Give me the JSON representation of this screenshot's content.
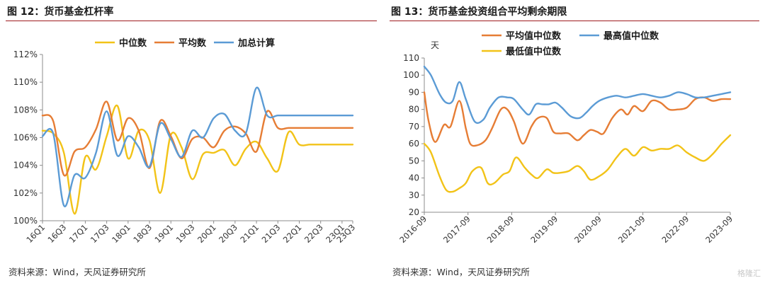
{
  "colors": {
    "median": "#f2c318",
    "average": "#e67d35",
    "aggregate": "#5b9bd5",
    "title_rule": "#9e1b20"
  },
  "watermark": "格隆汇",
  "charts": [
    {
      "title": "图 12：货币基金杠杆率",
      "source": "资料来源：Wind，天风证券研究所",
      "chart_data": {
        "type": "line",
        "title": "图 12：货币基金杠杆率",
        "xlabel": "",
        "ylabel": "",
        "ylim": [
          100,
          112
        ],
        "yticks": [
          100,
          102,
          104,
          106,
          108,
          110,
          112
        ],
        "ytick_labels": [
          "100%",
          "102%",
          "104%",
          "106%",
          "108%",
          "110%",
          "112%"
        ],
        "grid": false,
        "legend_position": "top",
        "x": [
          0,
          1,
          2,
          3,
          4,
          5,
          6,
          7,
          8,
          9,
          10,
          11,
          12,
          13,
          14,
          15,
          16,
          17,
          18,
          19,
          20,
          21,
          22,
          23,
          24,
          25,
          26,
          27,
          28,
          29
        ],
        "xrange": [
          0,
          29
        ],
        "xtick_positions": [
          0,
          2,
          4,
          6,
          8,
          10,
          12,
          14,
          16,
          18,
          20,
          22,
          24,
          26,
          28,
          29
        ],
        "xtick_labels": [
          "16Q1",
          "16Q3",
          "17Q1",
          "17Q3",
          "18Q1",
          "18Q3",
          "19Q1",
          "19Q3",
          "20Q1",
          "20Q3",
          "21Q1",
          "21Q3",
          "22Q1",
          "22Q3",
          "23Q1",
          "23Q3"
        ],
        "series": [
          {
            "name": "中位数",
            "color_key": "median",
            "values": [
              106.5,
              106.3,
              104.9,
              100.5,
              104.6,
              103.7,
              106.1,
              108.3,
              104.5,
              106.5,
              105.8,
              102.0,
              106.2,
              105.3,
              103.0,
              104.8,
              104.9,
              105.1,
              104.0,
              105.2,
              105.7,
              104.5,
              103.6,
              106.4,
              105.5,
              105.5,
              105.5,
              105.5,
              105.5,
              105.5
            ]
          },
          {
            "name": "平均数",
            "color_key": "average",
            "values": [
              107.6,
              107.2,
              103.3,
              105.0,
              105.3,
              106.6,
              108.6,
              105.8,
              107.4,
              106.5,
              103.8,
              107.2,
              106.1,
              104.5,
              105.9,
              106.0,
              105.3,
              106.5,
              106.8,
              106.3,
              105.0,
              107.9,
              106.7,
              106.7,
              106.7,
              106.7,
              106.7,
              106.7,
              106.7,
              106.7
            ]
          },
          {
            "name": "加总计算",
            "color_key": "aggregate",
            "values": [
              106.1,
              106.3,
              101.1,
              103.3,
              103.1,
              104.9,
              107.9,
              104.7,
              106.1,
              105.3,
              103.9,
              107.0,
              105.9,
              104.6,
              106.5,
              106.0,
              107.4,
              107.7,
              106.5,
              106.3,
              109.6,
              107.6,
              107.6,
              107.6,
              107.6,
              107.6,
              107.6,
              107.6,
              107.6,
              107.6
            ]
          }
        ]
      }
    },
    {
      "title": "图 13：货币基金投资组合平均剩余期限",
      "source": "资料来源：Wind，天风证券研究所",
      "chart_data": {
        "type": "line",
        "title": "图 13：货币基金投资组合平均剩余期限",
        "xlabel": "",
        "ylabel": "天",
        "ylim": [
          20,
          110
        ],
        "yticks": [
          20,
          30,
          40,
          50,
          60,
          70,
          80,
          90,
          100,
          110
        ],
        "ytick_labels": [
          "20",
          "30",
          "40",
          "50",
          "60",
          "70",
          "80",
          "90",
          "100",
          "110"
        ],
        "grid": false,
        "legend_position": "top",
        "xrange": [
          0,
          7
        ],
        "xtick_positions": [
          0,
          1,
          2,
          3,
          4,
          5,
          6,
          7
        ],
        "xtick_labels": [
          "2016-09",
          "2017-09",
          "2018-09",
          "2019-09",
          "2020-09",
          "2021-09",
          "2022-09",
          "2023-09"
        ],
        "series": [
          {
            "name": "平均值中位数",
            "color_key": "average",
            "x": [
              0,
              0.1,
              0.25,
              0.45,
              0.6,
              0.8,
              0.95,
              1.05,
              1.2,
              1.4,
              1.55,
              1.75,
              1.9,
              2.05,
              2.25,
              2.45,
              2.6,
              2.8,
              2.95,
              3.1,
              3.3,
              3.5,
              3.65,
              3.8,
              3.95,
              4.1,
              4.3,
              4.5,
              4.65,
              4.8,
              5.0,
              5.2,
              5.4,
              5.6,
              5.8,
              6.0,
              6.2,
              6.4,
              6.6,
              6.8,
              7.0
            ],
            "values": [
              90,
              73,
              61,
              71,
              70,
              85,
              69,
              60,
              59,
              62,
              69,
              80,
              80,
              73,
              60,
              70,
              75,
              75,
              67,
              66,
              66,
              62,
              65,
              68,
              67,
              66,
              75,
              80,
              77,
              82,
              79,
              85,
              84,
              80,
              80,
              81,
              86,
              87,
              85,
              86,
              86
            ]
          },
          {
            "name": "最高值中位数",
            "color_key": "aggregate",
            "x": [
              0,
              0.15,
              0.35,
              0.5,
              0.65,
              0.8,
              0.95,
              1.15,
              1.35,
              1.5,
              1.7,
              1.9,
              2.05,
              2.25,
              2.4,
              2.55,
              2.7,
              2.85,
              3.0,
              3.15,
              3.35,
              3.55,
              3.7,
              3.85,
              4.0,
              4.2,
              4.4,
              4.6,
              4.8,
              5.0,
              5.2,
              5.4,
              5.6,
              5.8,
              6.0,
              6.2,
              6.4,
              6.6,
              6.8,
              7.0
            ],
            "values": [
              105,
              100,
              89,
              84,
              85,
              96,
              86,
              73,
              74,
              81,
              87,
              87,
              86,
              80,
              77,
              83,
              83,
              83,
              84,
              81,
              76,
              75,
              78,
              82,
              85,
              87,
              88,
              87,
              88,
              89,
              88,
              87,
              88,
              90,
              89,
              87,
              87,
              88,
              89,
              90
            ]
          },
          {
            "name": "最低值中位数",
            "color_key": "median",
            "x": [
              0,
              0.15,
              0.35,
              0.5,
              0.65,
              0.8,
              0.95,
              1.1,
              1.3,
              1.45,
              1.6,
              1.8,
              1.95,
              2.1,
              2.3,
              2.45,
              2.6,
              2.8,
              2.95,
              3.1,
              3.3,
              3.5,
              3.65,
              3.8,
              4.0,
              4.2,
              4.4,
              4.6,
              4.8,
              5.0,
              5.2,
              5.4,
              5.6,
              5.8,
              6.0,
              6.2,
              6.4,
              6.6,
              6.8,
              7.0
            ],
            "values": [
              60,
              55,
              41,
              33,
              32,
              34,
              37,
              44,
              46,
              37,
              37,
              42,
              44,
              52,
              46,
              42,
              40,
              45,
              43,
              43,
              44,
              47,
              44,
              39,
              41,
              45,
              52,
              57,
              53,
              58,
              56,
              57,
              57,
              59,
              55,
              52,
              50,
              54,
              60,
              65
            ]
          }
        ]
      }
    }
  ]
}
